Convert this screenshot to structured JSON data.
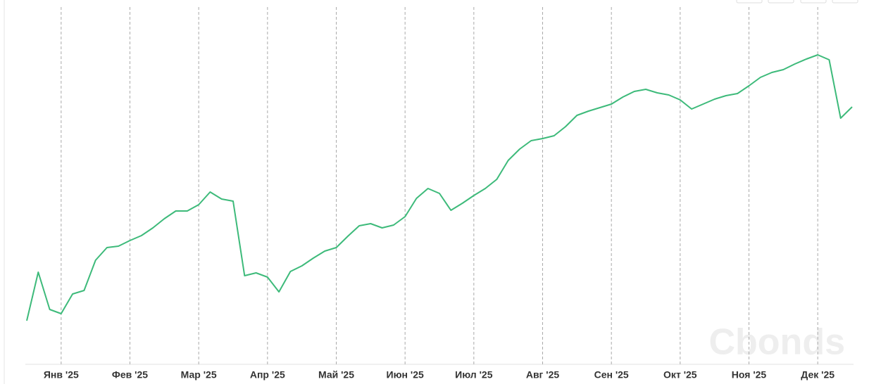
{
  "chart_data": {
    "type": "line",
    "categories": [
      null,
      null,
      null,
      "Янв '25",
      null,
      null,
      null,
      null,
      null,
      "Фев '25",
      null,
      null,
      null,
      null,
      null,
      "Мар '25",
      null,
      null,
      null,
      null,
      null,
      "Апр '25",
      null,
      null,
      null,
      null,
      null,
      "Май '25",
      null,
      null,
      null,
      null,
      null,
      "Июн '25",
      null,
      null,
      null,
      null,
      null,
      "Июл '25",
      null,
      null,
      null,
      null,
      null,
      "Авг '25",
      null,
      null,
      null,
      null,
      null,
      "Сен '25",
      null,
      null,
      null,
      null,
      null,
      "Окт '25",
      null,
      null,
      null,
      null,
      null,
      "Ноя '25",
      null,
      null,
      null,
      null,
      null,
      "Дек '25",
      null,
      null,
      null
    ],
    "series": [
      {
        "color": "#3dba7a",
        "values": [
          64,
          133,
          80,
          74,
          102,
          107,
          150,
          168,
          170,
          178,
          185,
          196,
          209,
          220,
          220,
          229,
          247,
          237,
          234,
          128,
          132,
          126,
          105,
          134,
          142,
          153,
          163,
          168,
          184,
          199,
          202,
          196,
          200,
          212,
          238,
          252,
          245,
          221,
          231,
          242,
          252,
          265,
          292,
          308,
          320,
          323,
          327,
          340,
          356,
          362,
          367,
          372,
          382,
          390,
          393,
          388,
          385,
          378,
          365,
          372,
          379,
          384,
          387,
          398,
          410,
          417,
          421,
          429,
          436,
          442,
          435,
          352,
          368
        ]
      }
    ],
    "ylim": [
      0,
      520
    ],
    "grid": true,
    "watermark": "Cbonds"
  }
}
